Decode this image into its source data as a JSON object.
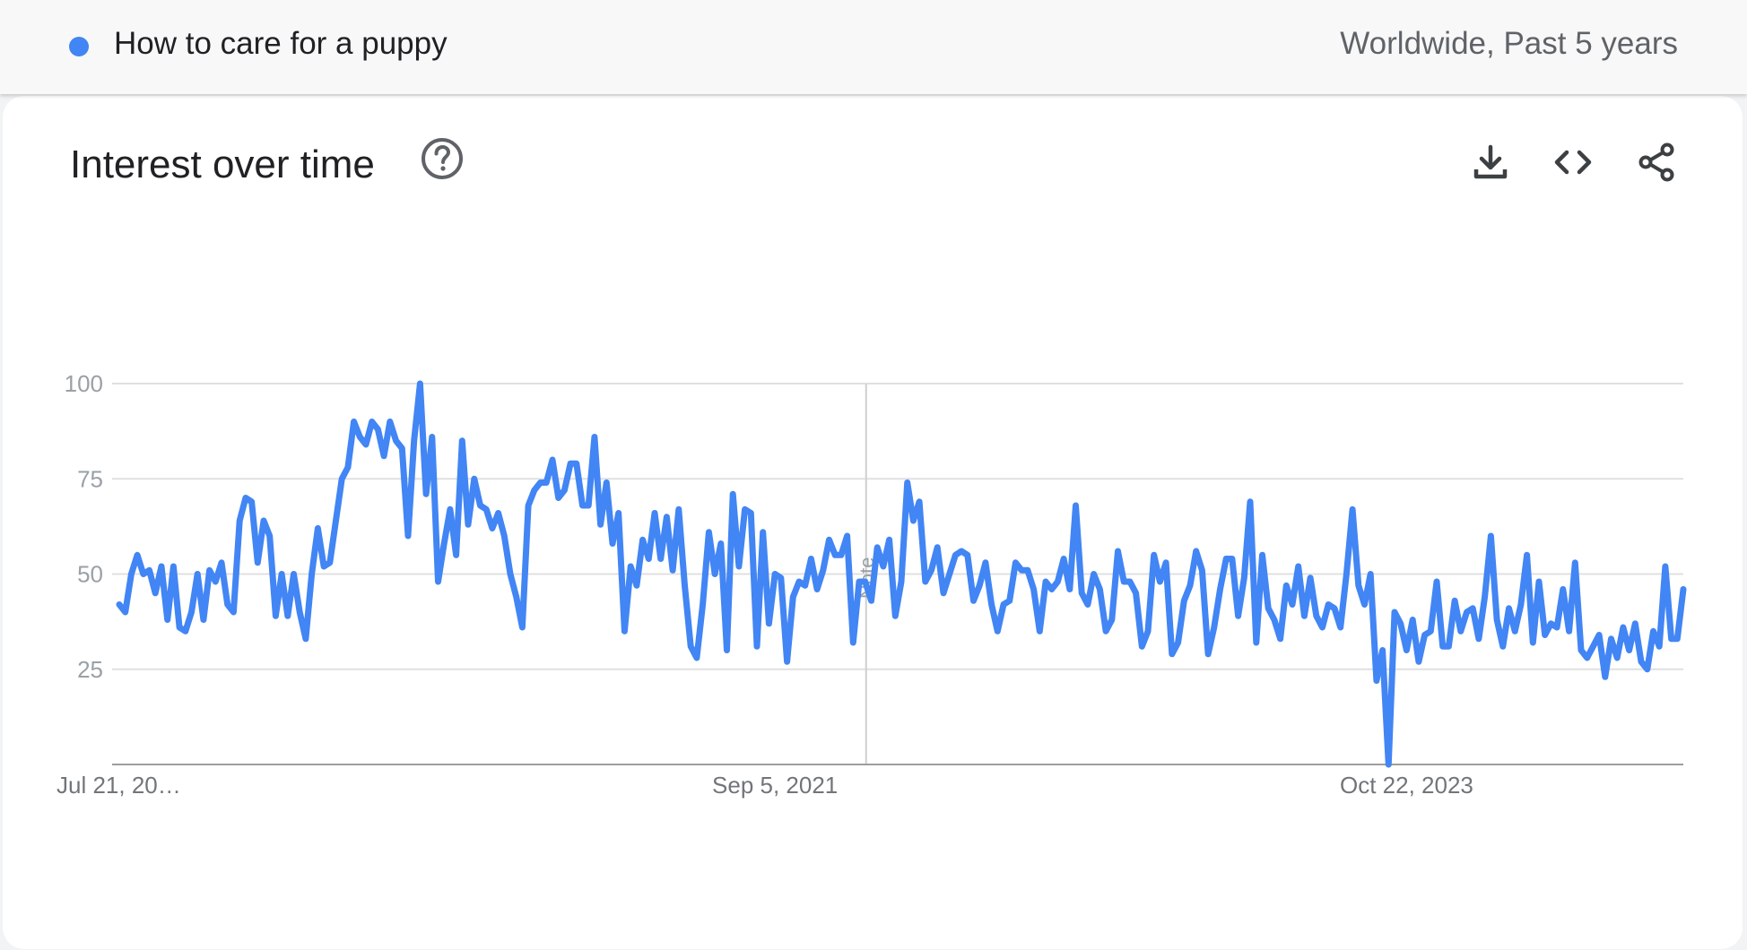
{
  "legend": {
    "term": "How to care for a puppy",
    "scope": "Worldwide, Past 5 years"
  },
  "card": {
    "title": "Interest over time",
    "help_icon": "help-circle-icon",
    "tools": [
      "download-icon",
      "embed-code-icon",
      "share-icon"
    ]
  },
  "colors": {
    "series": "#4285f4",
    "grid": "#e0e0e0",
    "axis": "#9e9e9e",
    "note_line": "#cfcfcf"
  },
  "chart_data": {
    "type": "line",
    "title": "Interest over time",
    "series": [
      {
        "name": "How to care for a puppy",
        "values": [
          42,
          40,
          50,
          55,
          50,
          51,
          45,
          52,
          38,
          52,
          36,
          35,
          40,
          50,
          38,
          51,
          48,
          53,
          42,
          40,
          64,
          70,
          69,
          53,
          64,
          60,
          39,
          50,
          39,
          50,
          40,
          33,
          50,
          62,
          52,
          53,
          64,
          75,
          78,
          90,
          86,
          84,
          90,
          88,
          81,
          90,
          85,
          83,
          60,
          85,
          100,
          71,
          86,
          48,
          58,
          67,
          55,
          85,
          63,
          75,
          68,
          67,
          62,
          66,
          60,
          50,
          44,
          36,
          68,
          72,
          74,
          74,
          80,
          70,
          72,
          79,
          79,
          68,
          68,
          86,
          63,
          74,
          58,
          66,
          35,
          52,
          47,
          59,
          54,
          66,
          54,
          65,
          51,
          67,
          47,
          31,
          28,
          42,
          61,
          50,
          58,
          30,
          71,
          52,
          67,
          66,
          31,
          61,
          37,
          50,
          49,
          27,
          44,
          48,
          47,
          54,
          46,
          51,
          59,
          55,
          55,
          60,
          32,
          48,
          48,
          43,
          57,
          52,
          59,
          39,
          48,
          74,
          64,
          69,
          48,
          51,
          57,
          45,
          50,
          55,
          56,
          55,
          43,
          47,
          53,
          42,
          35,
          42,
          43,
          53,
          51,
          51,
          46,
          35,
          48,
          46,
          48,
          54,
          46,
          68,
          45,
          42,
          50,
          46,
          35,
          38,
          56,
          48,
          48,
          45,
          31,
          35,
          55,
          48,
          53,
          29,
          32,
          43,
          47,
          56,
          51,
          29,
          36,
          46,
          54,
          54,
          39,
          49,
          69,
          32,
          55,
          41,
          38,
          33,
          47,
          42,
          52,
          39,
          49,
          39,
          36,
          42,
          41,
          36,
          50,
          67,
          47,
          42,
          50,
          22,
          30,
          0,
          40,
          37,
          30,
          38,
          27,
          34,
          35,
          48,
          31,
          31,
          43,
          35,
          40,
          41,
          33,
          44,
          60,
          38,
          31,
          41,
          35,
          42,
          55,
          32,
          48,
          34,
          37,
          36,
          46,
          35,
          53,
          30,
          28,
          31,
          34,
          23,
          33,
          28,
          36,
          30,
          37,
          27,
          25,
          35,
          31,
          52,
          33,
          33,
          46
        ],
        "color": "#4285f4"
      }
    ],
    "x_labels": [
      "Jul 21, 20…",
      "Sep 5, 2021",
      "Oct 22, 2023"
    ],
    "y_ticks": [
      25,
      50,
      75,
      100
    ],
    "ylim": [
      0,
      100
    ],
    "note_label": "Note",
    "grid": true
  }
}
